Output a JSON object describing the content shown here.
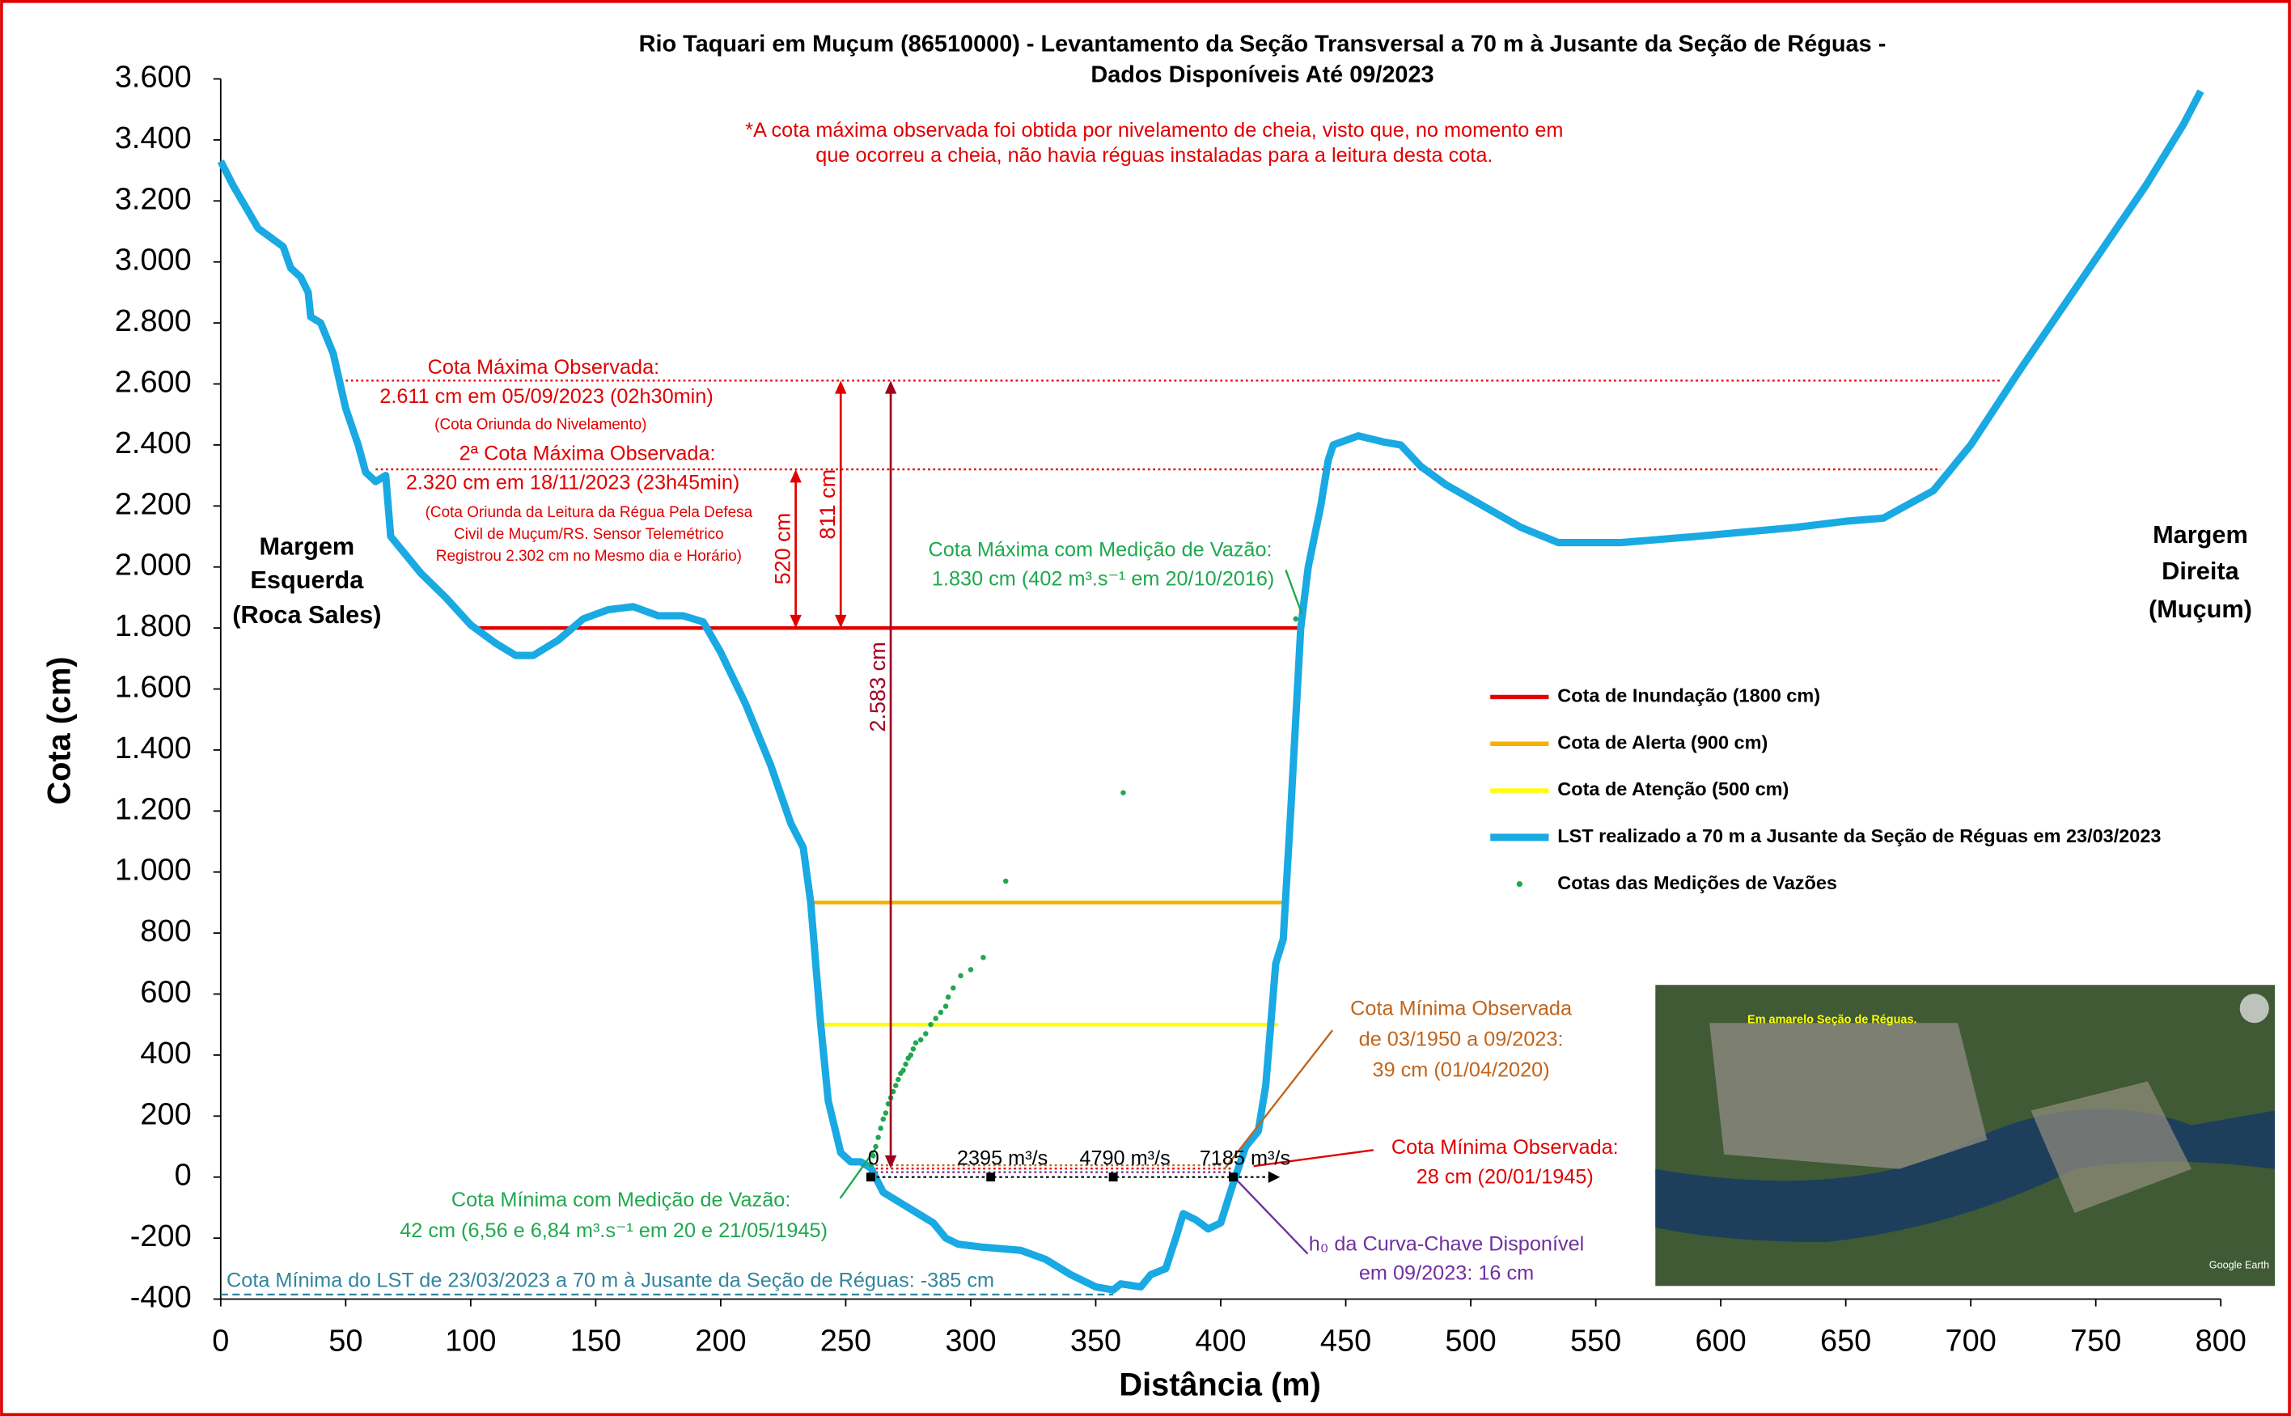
{
  "chart_data": {
    "type": "line",
    "title": [
      "Rio Taquari em Muçum (86510000) - Levantamento da Seção Transversal a 70 m à Jusante da Seção de Réguas -",
      "Dados Disponíveis Até 09/2023"
    ],
    "note": [
      "*A cota máxima observada foi obtida por nivelamento de cheia, visto que, no momento em",
      "que ocorreu a cheia, não havia réguas instaladas para a leitura desta cota."
    ],
    "xlabel": "Distância (m)",
    "ylabel": "Cota (cm)",
    "xlim": [
      0,
      800
    ],
    "xticks": [
      0,
      50,
      100,
      150,
      200,
      250,
      300,
      350,
      400,
      450,
      500,
      550,
      600,
      650,
      700,
      750,
      800
    ],
    "ylim": [
      -400,
      3600
    ],
    "yticks": [
      -400,
      -200,
      0,
      200,
      400,
      600,
      800,
      {
        "value": 1000,
        "label": "1.000"
      },
      {
        "value": 1200,
        "label": "1.200"
      },
      {
        "value": 1400,
        "label": "1.400"
      },
      {
        "value": 1600,
        "label": "1.600"
      },
      {
        "value": 1800,
        "label": "1.800"
      },
      {
        "value": 2000,
        "label": "2.000"
      },
      {
        "value": 2200,
        "label": "2.200"
      },
      {
        "value": 2400,
        "label": "2.400"
      },
      {
        "value": 2600,
        "label": "2.600"
      },
      {
        "value": 2800,
        "label": "2.800"
      },
      {
        "value": 3000,
        "label": "3.000"
      },
      {
        "value": 3200,
        "label": "3.200"
      },
      {
        "value": 3400,
        "label": "3.400"
      },
      {
        "value": 3600,
        "label": "3.600"
      }
    ],
    "legend": "right",
    "series": [
      {
        "name": "Cota de Inundação (1800 cm)",
        "color": "#e00000",
        "x": [
          103,
          433
        ],
        "values": [
          1800,
          1800
        ]
      },
      {
        "name": "Cota de Alerta (900 cm)",
        "color": "#f5b000",
        "x": [
          235,
          427
        ],
        "values": [
          900,
          900
        ]
      },
      {
        "name": "Cota de Atenção (500 cm)",
        "color": "#ffff00",
        "x": [
          239,
          423
        ],
        "values": [
          500,
          500
        ]
      },
      {
        "name": "LST realizado a 70 m a Jusante da Seção de Réguas em 23/03/2023",
        "color": "#19a9e3",
        "x": [
          0,
          5,
          10,
          15,
          20,
          25,
          28,
          32,
          35,
          36,
          40,
          45,
          50,
          55,
          58,
          62,
          66,
          68,
          75,
          80,
          90,
          100,
          110,
          118,
          125,
          135,
          145,
          155,
          165,
          175,
          185,
          193,
          200,
          210,
          220,
          228,
          233,
          236,
          240,
          243,
          248,
          252,
          256,
          260,
          265,
          275,
          285,
          290,
          295,
          305,
          320,
          330,
          340,
          350,
          357,
          360,
          368,
          372,
          378,
          382,
          385,
          390,
          395,
          400,
          405,
          410,
          415,
          418,
          422,
          425,
          428,
          432,
          435,
          440,
          443,
          445,
          455,
          465,
          472,
          480,
          490,
          505,
          520,
          535,
          560,
          590,
          630,
          650,
          665,
          685,
          700,
          720,
          745,
          770,
          785,
          792
        ],
        "values": [
          3330,
          3250,
          3180,
          3110,
          3080,
          3050,
          2980,
          2950,
          2900,
          2820,
          2800,
          2700,
          2520,
          2400,
          2310,
          2280,
          2300,
          2100,
          2030,
          1980,
          1900,
          1810,
          1750,
          1710,
          1710,
          1760,
          1830,
          1860,
          1870,
          1840,
          1840,
          1820,
          1720,
          1550,
          1350,
          1160,
          1080,
          900,
          500,
          250,
          80,
          50,
          50,
          30,
          -50,
          -100,
          -150,
          -200,
          -220,
          -230,
          -240,
          -270,
          -320,
          -360,
          -370,
          -350,
          -360,
          -320,
          -300,
          -200,
          -120,
          -140,
          -170,
          -150,
          -20,
          100,
          150,
          300,
          700,
          780,
          1200,
          1800,
          2000,
          2200,
          2350,
          2400,
          2430,
          2410,
          2400,
          2330,
          2270,
          2200,
          2130,
          2080,
          2080,
          2100,
          2130,
          2150,
          2160,
          2250,
          2400,
          2650,
          2950,
          3250,
          3450,
          3560
        ]
      },
      {
        "name": "Cotas das Medições de Vazões",
        "type": "scatter",
        "color": "#1fa84f",
        "x": [
          260,
          261,
          262,
          263,
          264,
          265,
          266,
          267,
          268,
          269,
          270,
          271,
          272,
          273,
          274,
          275,
          276,
          277,
          278,
          280,
          282,
          284,
          286,
          288,
          290,
          291,
          293,
          296,
          300,
          305,
          314,
          361,
          430
        ],
        "values": [
          42,
          70,
          100,
          130,
          160,
          190,
          210,
          240,
          260,
          280,
          300,
          320,
          340,
          350,
          370,
          390,
          400,
          420,
          440,
          450,
          470,
          500,
          520,
          540,
          560,
          590,
          620,
          660,
          680,
          720,
          970,
          1260,
          1830
        ]
      }
    ],
    "reference_lines": [
      {
        "value": 2611,
        "x": [
          48,
          712
        ],
        "color": "#e00000",
        "style": "dotted"
      },
      {
        "value": 2320,
        "x": [
          62,
          688
        ],
        "color": "#e00000",
        "style": "dotted"
      },
      {
        "value": 39,
        "x": [
          262,
          400
        ],
        "color": "#c0651c",
        "style": "dotted"
      },
      {
        "value": 28,
        "x": [
          262,
          405
        ],
        "color": "#e00000",
        "style": "dotted"
      },
      {
        "value": 16,
        "x": [
          262,
          405
        ],
        "color": "#7030a0",
        "style": "dotted"
      },
      {
        "value": -385,
        "x": [
          0,
          357
        ],
        "color": "#31859c",
        "style": "dashed"
      }
    ],
    "arrows": [
      {
        "label": "520 cm",
        "x": 230,
        "from": 1800,
        "to": 2320
      },
      {
        "label": "811 cm",
        "x": 248,
        "from": 1800,
        "to": 2611
      },
      {
        "label": "2.583 cm",
        "x": 268,
        "from": 28,
        "to": 2611
      }
    ],
    "flow_axis": {
      "level": 0,
      "x": [
        260,
        308,
        357,
        405
      ],
      "labels": [
        "0",
        "2395 m³/s",
        "4790 m³/s",
        "7185 m³/s"
      ]
    },
    "margins": {
      "left": [
        "Margem",
        "Esquerda",
        "(Roca Sales)"
      ],
      "right": [
        "Margem",
        "Direita",
        "(Muçum)"
      ]
    },
    "annotations": {
      "max": [
        "Cota Máxima Observada:",
        "2.611 cm em 05/09/2023 (02h30min)",
        "(Cota Oriunda do Nivelamento)"
      ],
      "max2": [
        "2ª Cota Máxima Observada:",
        "2.320 cm em 18/11/2023 (23h45min)",
        "(Cota Oriunda da Leitura da Régua Pela Defesa",
        "Civil de Muçum/RS. Sensor Telemétrico",
        "Registrou 2.302 cm no Mesmo dia e Horário)"
      ],
      "max_flow": [
        "Cota Máxima com Medição de Vazão:",
        "1.830 cm (402 m³.s⁻¹ em 20/10/2016)"
      ],
      "min_period": [
        "Cota Mínima Observada",
        "de 03/1950 a 09/2023:",
        "39 cm (01/04/2020)"
      ],
      "min": [
        "Cota Mínima Observada:",
        "28 cm (20/01/1945)"
      ],
      "h0": [
        "h₀ da Curva-Chave Disponível",
        "em 09/2023: 16 cm"
      ],
      "min_flow": [
        "Cota Mínima com Medição de Vazão:",
        "42 cm (6,56 e 6,84 m³.s⁻¹ em 20 e 21/05/1945)"
      ],
      "min_lst": "Cota Mínima do LST de 23/03/2023 a 70 m à Jusante da Seção de Réguas: -385 cm"
    },
    "inset": {
      "caption": "Em amarelo Seção de Réguas.",
      "credit": "Google Earth"
    }
  }
}
